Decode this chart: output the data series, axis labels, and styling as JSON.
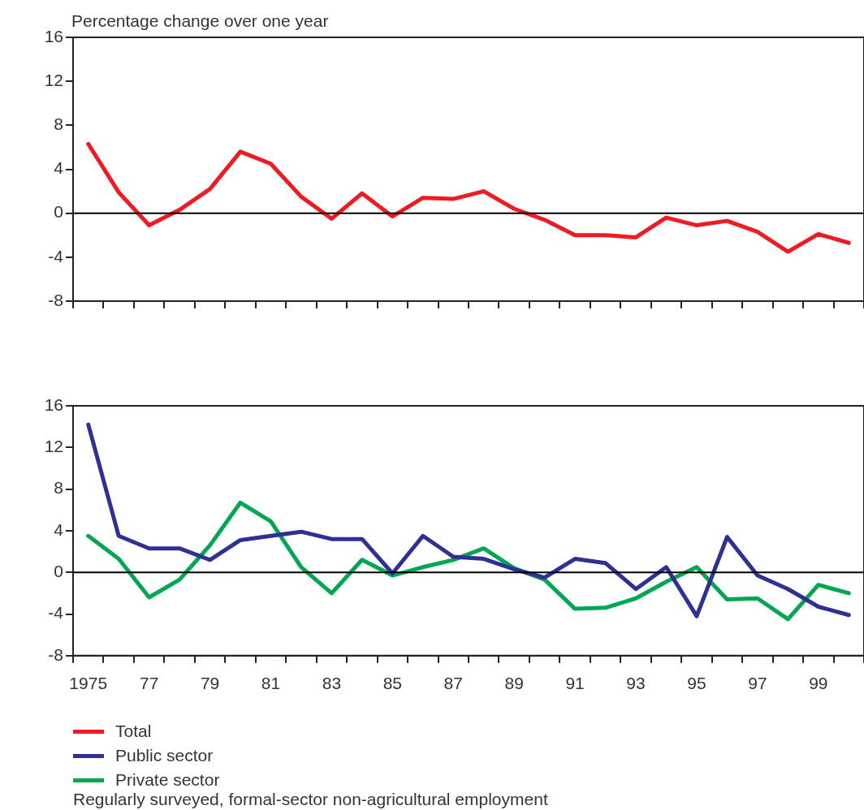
{
  "chart_data": [
    {
      "type": "line",
      "ylabel": "Percentage change over one year",
      "categories": [
        "1975",
        null,
        "77",
        null,
        "79",
        null,
        "81",
        null,
        "83",
        null,
        "85",
        null,
        "87",
        null,
        "89",
        null,
        "91",
        null,
        "93",
        null,
        "95",
        null,
        "97",
        null,
        "99",
        null
      ],
      "series": [
        {
          "name": "Total",
          "color": "#ed1c24",
          "values": [
            6.3,
            1.9,
            -1.1,
            0.3,
            2.2,
            5.6,
            4.5,
            1.5,
            -0.5,
            1.8,
            -0.3,
            1.4,
            1.3,
            2.0,
            0.4,
            -0.6,
            -2.0,
            -2.0,
            -2.2,
            -0.4,
            -1.1,
            -0.7,
            -1.7,
            -3.5,
            -1.9,
            -2.7
          ]
        }
      ],
      "ylim": [
        -8,
        16
      ],
      "yticks": [
        -8,
        -4,
        0,
        4,
        8,
        12,
        16
      ],
      "ref_lines": [
        {
          "axis": "y",
          "value": 0
        }
      ],
      "tick_labels": "y",
      "legend": "bottom",
      "marker": "none",
      "line_style": "solid"
    },
    {
      "type": "line",
      "categories": [
        "1975",
        null,
        "77",
        null,
        "79",
        null,
        "81",
        null,
        "83",
        null,
        "85",
        null,
        "87",
        null,
        "89",
        null,
        "91",
        null,
        "93",
        null,
        "95",
        null,
        "97",
        null,
        "99",
        null
      ],
      "series": [
        {
          "name": "Public sector",
          "color": "#2e3192",
          "values": [
            14.2,
            3.5,
            2.3,
            2.3,
            1.2,
            3.1,
            3.5,
            3.9,
            3.2,
            3.2,
            -0.1,
            3.5,
            1.5,
            1.3,
            0.3,
            -0.5,
            1.3,
            0.9,
            -1.6,
            0.5,
            -4.2,
            3.4,
            -0.3,
            -1.6,
            -3.3,
            -4.1
          ]
        },
        {
          "name": "Private sector",
          "color": "#00a651",
          "values": [
            3.5,
            1.3,
            -2.4,
            -0.7,
            2.6,
            6.7,
            4.9,
            0.5,
            -2.0,
            1.2,
            -0.3,
            0.5,
            1.2,
            2.3,
            0.4,
            -0.7,
            -3.5,
            -3.4,
            -2.5,
            -0.9,
            0.5,
            -2.6,
            -2.5,
            -4.5,
            -1.2,
            -2.0
          ]
        }
      ],
      "ylim": [
        -8,
        16
      ],
      "yticks": [
        -8,
        -4,
        0,
        4,
        8,
        12,
        16
      ],
      "ref_lines": [
        {
          "axis": "y",
          "value": 0
        }
      ],
      "legend": "bottom",
      "marker": "none",
      "line_style": "solid",
      "annotations": [
        "Regularly surveyed, formal-sector non-agricultural employment"
      ]
    }
  ]
}
